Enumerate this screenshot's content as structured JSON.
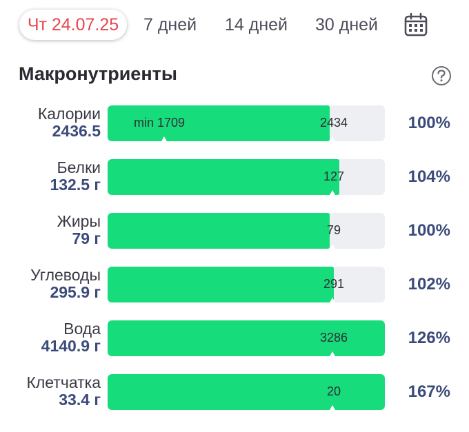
{
  "tabs": {
    "active_label": "Чт 24.07.25",
    "days7": "7 дней",
    "days14": "14 дней",
    "days30": "30 дней"
  },
  "icons": {
    "calendar": "calendar-icon",
    "help": "help-circle-icon"
  },
  "colors": {
    "accent_red": "#e8454f",
    "fill_green": "#16dc7b",
    "value_blue": "#3b4a7a",
    "track_gray": "#eeeff2"
  },
  "section": {
    "title": "Макронутриенты"
  },
  "rows": [
    {
      "label": "Калории",
      "value": "2436.5",
      "min_label": "min 1709",
      "target": "2434",
      "percent": "100%",
      "fill_fraction": 0.8
    },
    {
      "label": "Белки",
      "value": "132.5 г",
      "min_label": "",
      "target": "127",
      "percent": "104%",
      "fill_fraction": 0.835
    },
    {
      "label": "Жиры",
      "value": "79 г",
      "min_label": "",
      "target": "79",
      "percent": "100%",
      "fill_fraction": 0.8
    },
    {
      "label": "Углеводы",
      "value": "295.9 г",
      "min_label": "",
      "target": "291",
      "percent": "102%",
      "fill_fraction": 0.815
    },
    {
      "label": "Вода",
      "value": "4140.9 г",
      "min_label": "",
      "target": "3286",
      "percent": "126%",
      "fill_fraction": 1.0
    },
    {
      "label": "Клетчатка",
      "value": "33.4 г",
      "min_label": "",
      "target": "20",
      "percent": "167%",
      "fill_fraction": 1.0
    }
  ]
}
